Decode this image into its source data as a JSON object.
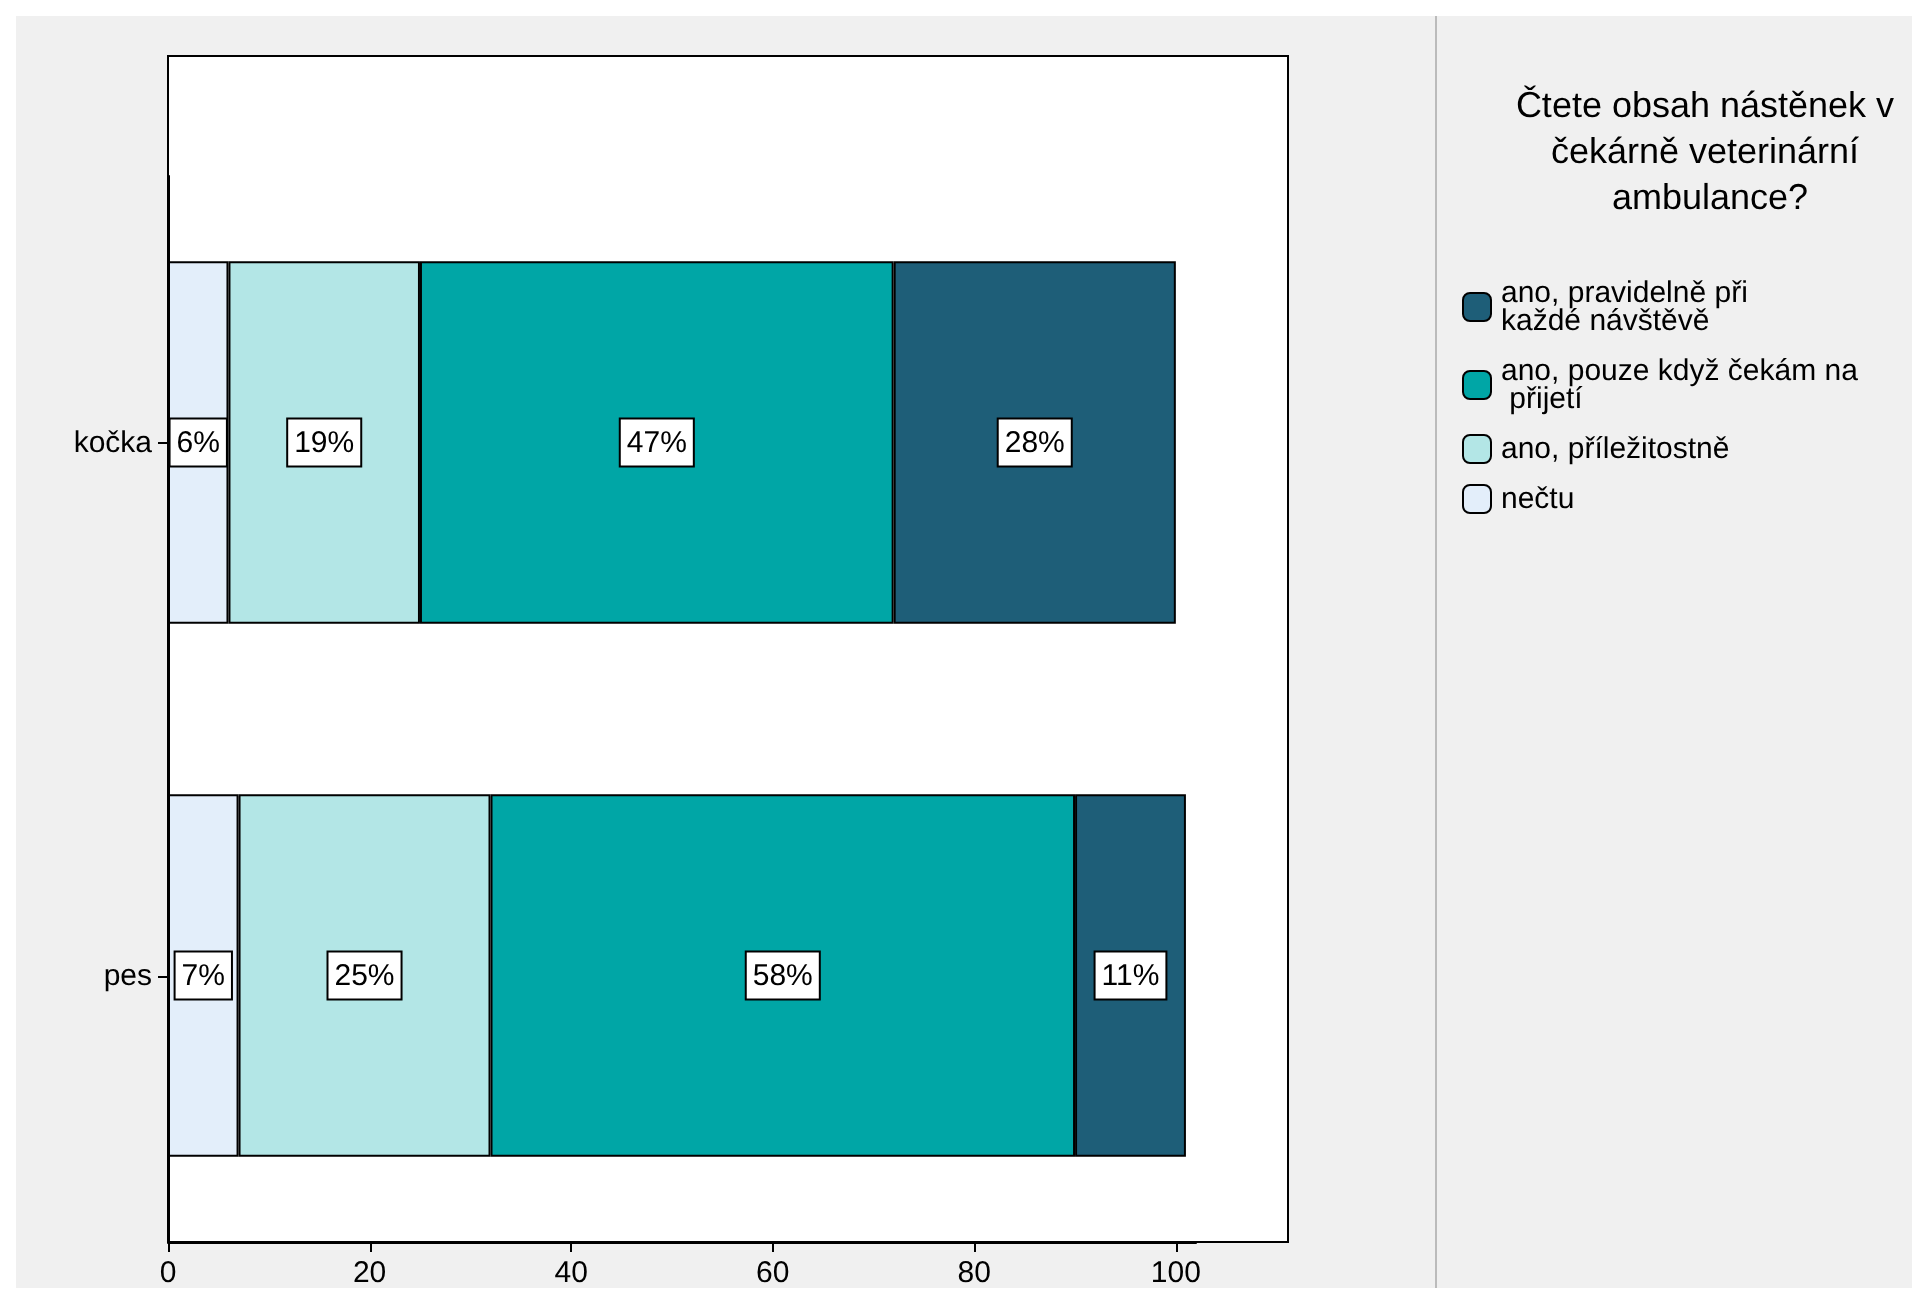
{
  "chart_data": {
    "type": "bar",
    "orientation": "horizontal",
    "stacked": true,
    "categories": [
      "kočka",
      "pes"
    ],
    "series": [
      {
        "name": "nečtu",
        "color": "#e3eefa",
        "values": [
          6,
          7
        ],
        "value_labels": [
          "6%",
          "7%"
        ]
      },
      {
        "name": "ano, příležitostně",
        "color": "#b3e6e6",
        "values": [
          19,
          25
        ],
        "value_labels": [
          "19%",
          "25%"
        ]
      },
      {
        "name": "ano, pouze když čekám na přijetí",
        "color": "#00a6a6",
        "values": [
          47,
          58
        ],
        "value_labels": [
          "47%",
          "58%"
        ]
      },
      {
        "name": "ano, pravidelně při každé návštěvě",
        "color": "#1e5e78",
        "values": [
          28,
          11
        ],
        "value_labels": [
          "28%",
          "11%"
        ]
      }
    ],
    "legend_title": "Čtete obsah nástěnek v čekárně veterinární ambulance?",
    "legend": "right",
    "xlim": [
      0,
      102
    ],
    "xticks": [
      0,
      20,
      40,
      60,
      80,
      100
    ],
    "grid": false
  }
}
